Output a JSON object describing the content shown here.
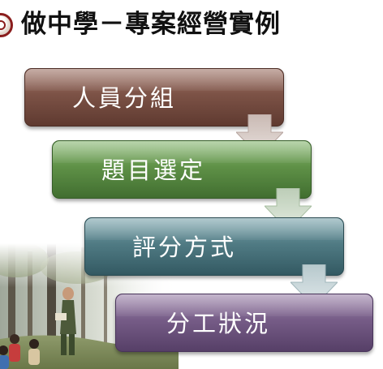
{
  "slide": {
    "title": "做中學－專案經營實例"
  },
  "steps": [
    {
      "label": "人員分組",
      "color": "#7c5246"
    },
    {
      "label": "題目選定",
      "color": "#5f9147"
    },
    {
      "label": "評分方式",
      "color": "#507b84"
    },
    {
      "label": "分工狀況",
      "color": "#765c87"
    }
  ],
  "icons": {
    "emblem": "school-emblem-icon",
    "connector": "down-arrow-icon"
  },
  "photo": {
    "subject": "forest-with-children-image"
  }
}
